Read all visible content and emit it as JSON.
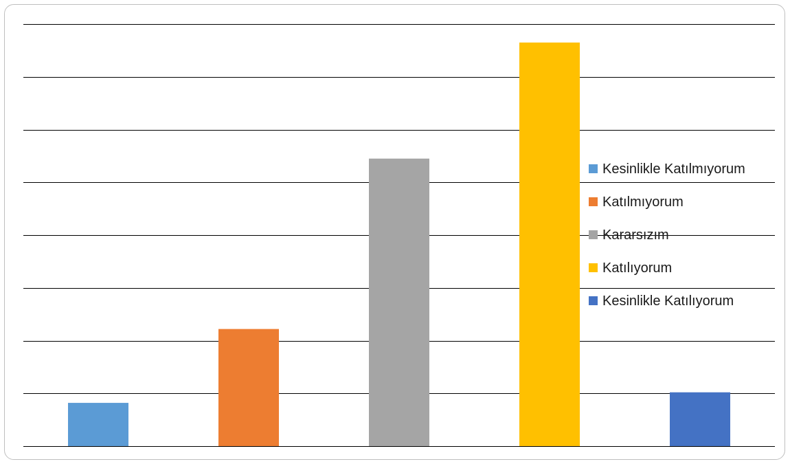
{
  "chart_data": {
    "type": "bar",
    "categories": [
      "Kesinlikle Katılmıyorum",
      "Katılmıyorum",
      "Kararsızım",
      "Katılıyorum",
      "Kesinlikle Katılıyorum"
    ],
    "values": [
      8.2,
      22.2,
      54.5,
      76.5,
      10.2
    ],
    "colors": [
      "#5b9bd5",
      "#ed7d31",
      "#a5a5a5",
      "#ffc000",
      "#4472c4"
    ],
    "ylim": [
      0,
      80
    ],
    "grid": true,
    "legend_position": "right",
    "title": "",
    "xlabel": "",
    "ylabel": ""
  }
}
